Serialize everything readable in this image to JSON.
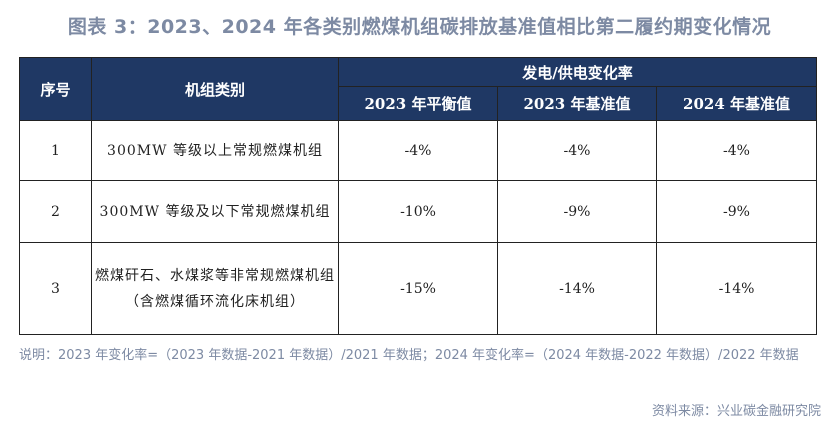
{
  "title": "图表 3：2023、2024 年各类别燃煤机组碳排放基准值相比第二履约期变化情况",
  "table": {
    "headers": {
      "no": "序号",
      "category": "机组类别",
      "group": "发电/供电变化率",
      "col_2023_balance": "2023 年平衡值",
      "col_2023_base": "2023 年基准值",
      "col_2024_base": "2024 年基准值"
    },
    "rows": [
      {
        "no": "1",
        "category": "300MW 等级以上常规燃煤机组",
        "v2023_balance": "-4%",
        "v2023_base": "-4%",
        "v2024_base": "-4%"
      },
      {
        "no": "2",
        "category": "300MW 等级及以下常规燃煤机组",
        "v2023_balance": "-10%",
        "v2023_base": "-9%",
        "v2024_base": "-9%"
      },
      {
        "no": "3",
        "category": "燃煤矸石、水煤浆等非常规燃煤机组（含燃煤循环流化床机组）",
        "v2023_balance": "-15%",
        "v2023_base": "-14%",
        "v2024_base": "-14%"
      }
    ]
  },
  "note": "说明：2023 年变化率=（2023 年数据-2021 年数据）/2021 年数据；2024 年变化率=（2024 年数据-2022 年数据）/2022 年数据",
  "source": "资料来源：兴业碳金融研究院",
  "colors": {
    "header_bg": "#1f3864",
    "accent_text": "#7d8aa3"
  }
}
